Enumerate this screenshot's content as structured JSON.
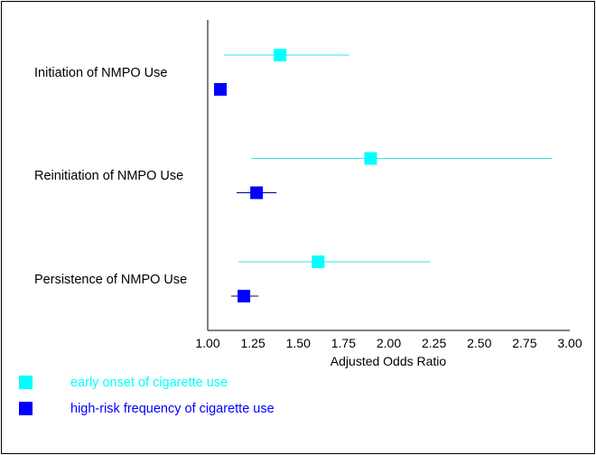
{
  "chart_data": {
    "type": "forest",
    "xlabel": "Adjusted Odds Ratio",
    "xlim": [
      1.0,
      3.0
    ],
    "xticks": [
      "1.00",
      "1.25",
      "1.50",
      "1.75",
      "2.00",
      "2.25",
      "2.50",
      "2.75",
      "3.00"
    ],
    "categories": [
      "Initiation of NMPO Use",
      "Reinitiation of NMPO Use",
      "Persistence of NMPO Use"
    ],
    "series": [
      {
        "name": "early onset of cigarette use",
        "color": "#00FFFF",
        "line_color": "#33E6E6",
        "points": [
          {
            "estimate": 1.4,
            "lower": 1.09,
            "upper": 1.78
          },
          {
            "estimate": 1.9,
            "lower": 1.24,
            "upper": 2.9
          },
          {
            "estimate": 1.61,
            "lower": 1.17,
            "upper": 2.23
          }
        ]
      },
      {
        "name": "high-risk frequency of cigarette use",
        "color": "#0000FF",
        "line_color": "#000080",
        "points": [
          {
            "estimate": 1.07,
            "lower": 1.05,
            "upper": 1.09
          },
          {
            "estimate": 1.27,
            "lower": 1.16,
            "upper": 1.38
          },
          {
            "estimate": 1.2,
            "lower": 1.13,
            "upper": 1.28
          }
        ]
      }
    ]
  }
}
